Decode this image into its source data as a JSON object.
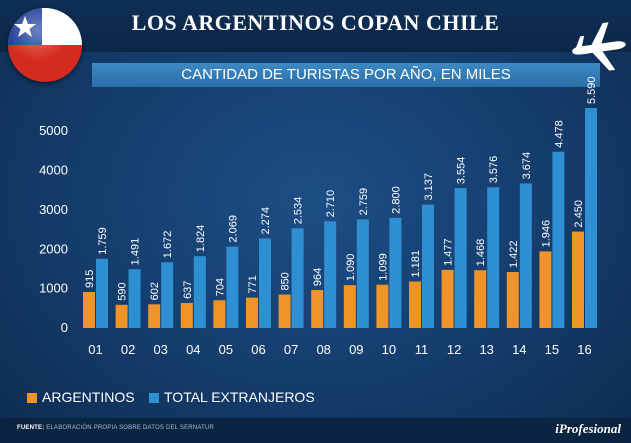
{
  "header": {
    "title": "LOS ARGENTINOS COPAN CHILE"
  },
  "subtitle": "CANTIDAD DE TURISTAS POR AÑO, EN MILES",
  "colors": {
    "argentinos": "#f0942a",
    "extranjeros": "#2f8fd3",
    "background": "#143c6b"
  },
  "icons": {
    "flag": "chile-flag-icon",
    "plane": "airplane-icon"
  },
  "chart_data": {
    "type": "bar",
    "categories": [
      "01",
      "02",
      "03",
      "04",
      "05",
      "06",
      "07",
      "08",
      "09",
      "10",
      "11",
      "12",
      "13",
      "14",
      "15",
      "16"
    ],
    "series": [
      {
        "name": "ARGENTINOS",
        "values": [
          915,
          590,
          602,
          637,
          704,
          771,
          850,
          964,
          1090,
          1099,
          1181,
          1477,
          1468,
          1422,
          1946,
          2450
        ],
        "labels": [
          "915",
          "590",
          "602",
          "637",
          "704",
          "771",
          "850",
          "964",
          "1.090",
          "1.099",
          "1.181",
          "1.477",
          "1.468",
          "1.422",
          "1.946",
          "2.450"
        ]
      },
      {
        "name": "TOTAL EXTRANJEROS",
        "values": [
          1759,
          1491,
          1672,
          1824,
          2069,
          2274,
          2534,
          2710,
          2759,
          2800,
          3137,
          3554,
          3576,
          3674,
          4478,
          5590
        ],
        "labels": [
          "1.759",
          "1.491",
          "1.672",
          "1.824",
          "2.069",
          "2.274",
          "2.534",
          "2.710",
          "2.759",
          "2.800",
          "3.137",
          "3.554",
          "3.576",
          "3.674",
          "4.478",
          "5.590"
        ]
      }
    ],
    "yticks": [
      "0",
      "1000",
      "2000",
      "3000",
      "4000",
      "5000"
    ],
    "ylim": [
      0,
      5590
    ],
    "grid": false,
    "legend_position": "bottom-left"
  },
  "legend": [
    {
      "label": "ARGENTINOS"
    },
    {
      "label": "TOTAL EXTRANJEROS"
    }
  ],
  "footer": {
    "label": "FUENTE:",
    "text": "ELABORACIÓN PROPIA SOBRE DATOS DEL SERNATUR",
    "brand": "iProfesional"
  }
}
